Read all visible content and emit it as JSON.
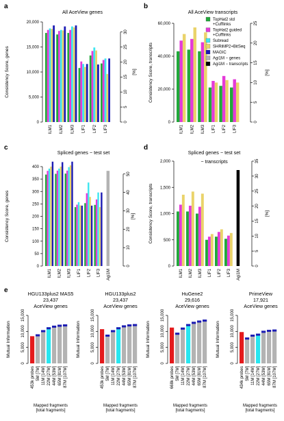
{
  "colors": {
    "tophat_std": "#21a83a",
    "tophat_guided": "#e43ad8",
    "subread": "#3ee6f0",
    "shrimp2": "#ead36a",
    "magic": "#1c1cb4",
    "agi_genes": "#b3b3b3",
    "agi_transcripts": "#000000",
    "probe": "#e41a1c",
    "rna_tick": "#1c1cb4",
    "grey": "#b3b3b3",
    "cyan": "#28e6f0"
  },
  "legend": {
    "items": [
      {
        "label_lines": [
          "TopHat2 std",
          "+Cufflinks"
        ],
        "color_key": "tophat_std"
      },
      {
        "label_lines": [
          "TopHat2 guided",
          "+Cufflinks"
        ],
        "color_key": "tophat_guided"
      },
      {
        "label_lines": [
          "Subread"
        ],
        "color_key": "subread"
      },
      {
        "label_lines": [
          "SHRiMP2+BitSeq"
        ],
        "color_key": "shrimp2"
      },
      {
        "label_lines": [
          "MAGIC"
        ],
        "color_key": "magic"
      },
      {
        "label_lines": [
          "Agi1M − genes"
        ],
        "color_key": "agi_genes"
      },
      {
        "label_lines": [
          "Agi1M − transcripts"
        ],
        "color_key": "agi_transcripts"
      }
    ]
  },
  "chart_data": [
    {
      "panel": "a",
      "type": "bar",
      "title": "All AceView genes",
      "ylabel": "Consistency Score, genes",
      "y2label": "[%]",
      "categories": [
        "ILM1",
        "ILM2",
        "ILM3",
        "LIF1",
        "LIF2",
        "LIF3"
      ],
      "ylim": [
        0,
        20000
      ],
      "yticks": [
        0,
        5000,
        10000,
        15000,
        20000
      ],
      "yticklabels": [
        "0",
        "5,000",
        "10,000",
        "15,000",
        "20,000"
      ],
      "y2ticks": [
        0,
        5,
        10,
        15,
        20,
        25,
        30
      ],
      "y2max_at_ylim": 33.33,
      "series": [
        {
          "color_key": "tophat_std",
          "values": [
            17800,
            17500,
            17800,
            10800,
            13300,
            11700
          ]
        },
        {
          "color_key": "tophat_guided",
          "values": [
            18400,
            18200,
            18400,
            12100,
            14200,
            12400
          ]
        },
        {
          "color_key": "subread",
          "values": [
            18700,
            18400,
            19100,
            11600,
            14900,
            12700
          ]
        },
        {
          "color_key": "shrimp2",
          "values": [
            18600,
            18300,
            18900,
            11000,
            14300,
            9600
          ]
        },
        {
          "color_key": "magic",
          "values": [
            19300,
            19100,
            19300,
            11600,
            11500,
            12700
          ]
        }
      ]
    },
    {
      "panel": "b",
      "type": "bar",
      "title": "All AceView transcripts",
      "ylabel": "Consistency Score, transcripts",
      "y2label": "[%]",
      "categories": [
        "ILM1",
        "ILM2",
        "ILM3",
        "LIF1",
        "LIF2",
        "LIF3"
      ],
      "ylim": [
        0,
        60000
      ],
      "yticks": [
        0,
        20000,
        40000,
        60000
      ],
      "yticklabels": [
        "0",
        "20,000",
        "40,000",
        "60,000"
      ],
      "y2ticks": [
        0,
        5,
        10,
        15,
        20,
        25
      ],
      "y2max_at_ylim": 25,
      "series": [
        {
          "color_key": "tophat_std",
          "values": [
            43000,
            44000,
            43000,
            21000,
            22000,
            21000
          ]
        },
        {
          "color_key": "tophat_guided",
          "values": [
            49500,
            50500,
            48500,
            25000,
            28000,
            26000
          ]
        },
        {
          "color_key": "subread",
          "values": [
            0,
            0,
            0,
            0,
            0,
            0
          ]
        },
        {
          "color_key": "shrimp2",
          "values": [
            53500,
            57500,
            54500,
            24000,
            25500,
            24000
          ]
        },
        {
          "color_key": "magic",
          "values": [
            0,
            0,
            0,
            0,
            0,
            0
          ]
        }
      ]
    },
    {
      "panel": "c",
      "type": "bar",
      "title": "Spliced genes − test set",
      "ylabel": "Consistency Score, genes",
      "y2label": "[%]",
      "categories": [
        "ILM1",
        "ILM2",
        "ILM3",
        "LIF1",
        "LIF2",
        "LIF3",
        "Agi1M"
      ],
      "ylim": [
        0,
        400
      ],
      "yticks": [
        0,
        50,
        100,
        150,
        200,
        250,
        300,
        350,
        400
      ],
      "yticklabels": [
        "0",
        "50",
        "100",
        "150",
        "200",
        "250",
        "300",
        "350",
        "400"
      ],
      "y2ticks": [
        0,
        10,
        20,
        30,
        40,
        50
      ],
      "y2max_at_ylim": 54,
      "series": [
        {
          "color_key": "tophat_std",
          "values": [
            368,
            371,
            372,
            237,
            253,
            246,
            0
          ]
        },
        {
          "color_key": "tophat_guided",
          "values": [
            383,
            384,
            384,
            247,
            293,
            268,
            0
          ]
        },
        {
          "color_key": "subread",
          "values": [
            392,
            392,
            398,
            257,
            336,
            296,
            0
          ]
        },
        {
          "color_key": "shrimp2",
          "values": [
            400,
            400,
            405,
            244,
            278,
            237,
            0
          ]
        },
        {
          "color_key": "magic",
          "values": [
            420,
            418,
            420,
            243,
            243,
            296,
            0
          ]
        },
        {
          "color_key": "agi_genes",
          "values": [
            0,
            0,
            0,
            0,
            0,
            0,
            383
          ]
        }
      ]
    },
    {
      "panel": "d",
      "type": "bar",
      "title": "Spliced genes − test set",
      "title2": "− transcripts",
      "ylabel": "Consistency Score, transcripts",
      "y2label": "[%]",
      "categories": [
        "ILM1",
        "ILM2",
        "ILM3",
        "LIF1",
        "LIF2",
        "LIF3",
        "Agi1M"
      ],
      "ylim": [
        0,
        2000
      ],
      "yticks": [
        0,
        500,
        1000,
        1500,
        2000
      ],
      "yticklabels": [
        "0",
        "500",
        "1,000",
        "1,500",
        "2,000"
      ],
      "y2ticks": [
        0,
        5,
        10,
        15,
        20,
        25,
        30,
        35
      ],
      "y2max_at_ylim": 35,
      "series": [
        {
          "color_key": "tophat_std",
          "values": [
            1040,
            1040,
            1000,
            500,
            560,
            520,
            0
          ]
        },
        {
          "color_key": "tophat_guided",
          "values": [
            1170,
            1150,
            1130,
            560,
            650,
            580,
            0
          ]
        },
        {
          "color_key": "shrimp2",
          "values": [
            1360,
            1420,
            1380,
            610,
            700,
            630,
            0
          ]
        },
        {
          "color_key": "agi_transcripts",
          "values": [
            0,
            0,
            0,
            0,
            0,
            0,
            1830
          ]
        }
      ]
    }
  ],
  "panel_e": {
    "ylabel": "Mutual Information",
    "xlabel_lines": [
      "Mapped fragments",
      "[total fragments]"
    ],
    "ylim": [
      0,
      15000
    ],
    "yticks": [
      0,
      5000,
      10000,
      15000
    ],
    "yticklabels": [
      "0",
      "5,000",
      "10,000",
      "15,000"
    ],
    "panels": [
      {
        "title_lines": [
          "HGU133plus2 MAS5",
          "23,437",
          "AceView genes"
        ],
        "categories": [
          "453k probes",
          "5M [7M]",
          "11M [14M]",
          "22M [27M]",
          "44M [53M]",
          "65M [81M]",
          "87M [107M]"
        ],
        "values": [
          8500,
          9100,
          10400,
          11300,
          11800,
          12100,
          12200
        ],
        "highlight": [
          0,
          0,
          0,
          1,
          0,
          0,
          0
        ]
      },
      {
        "title_lines": [
          "HGU133plus2",
          "23,437",
          "AceView genes"
        ],
        "categories": [
          "453k probes",
          "5M [7M]",
          "11M [14M]",
          "22M [27M]",
          "44M [53M]",
          "65M [81M]",
          "87M [107M]"
        ],
        "values": [
          10700,
          9000,
          10400,
          11300,
          11900,
          12200,
          12300
        ],
        "highlight": [
          0,
          0,
          0,
          1,
          0,
          0,
          0
        ]
      },
      {
        "title_lines": [
          "HuGene2",
          "29,616",
          "AceView genes"
        ],
        "categories": [
          "668k probes",
          "5M [7M]",
          "11M [14M]",
          "22M [27M]",
          "44M [53M]",
          "65M [81M]",
          "87M [107M]"
        ],
        "values": [
          11200,
          9600,
          11200,
          12300,
          13000,
          13400,
          13700
        ],
        "highlight": [
          0,
          0,
          0,
          1,
          0,
          0,
          0
        ]
      },
      {
        "title_lines": [
          "PrimeView",
          "17,921",
          "AceView genes"
        ],
        "categories": [
          "434k probes",
          "5M [7M]",
          "11M [14M]",
          "22M [27M]",
          "44M [53M]",
          "65M [81M]",
          "87M [107M]"
        ],
        "values": [
          9800,
          8100,
          9000,
          9300,
          10200,
          10500,
          10600
        ],
        "highlight": [
          0,
          0,
          0,
          1,
          0,
          0,
          0
        ]
      }
    ]
  },
  "panel_labels": [
    "a",
    "b",
    "c",
    "d",
    "e"
  ]
}
